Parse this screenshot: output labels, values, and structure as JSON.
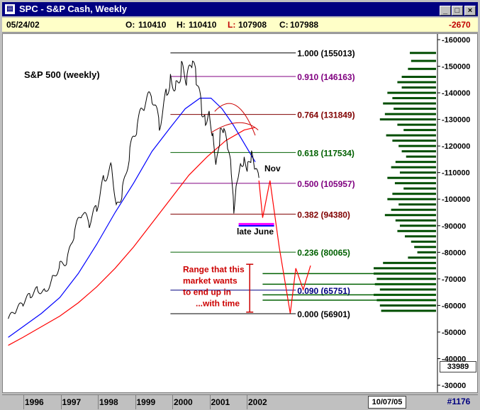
{
  "window": {
    "title": "SPC - S&P Cash, Weekly",
    "min": "_",
    "max": "□",
    "close": "×"
  },
  "infobar": {
    "date": "05/24/02",
    "o_label": "O:",
    "o_value": "110410",
    "h_label": "H:",
    "h_value": "110410",
    "l_label": "L:",
    "l_value": "107908",
    "c_label": "C:",
    "c_value": "107988",
    "change": "-2670"
  },
  "bottom": {
    "years": [
      "1996",
      "1997",
      "1998",
      "1999",
      "2000",
      "2001",
      "2002"
    ],
    "date_box": "10/07/05",
    "count": "#1176"
  },
  "scale_value_box": "33989",
  "chart_data": {
    "type": "line",
    "title": "S&P 500 (weekly)",
    "ylim": [
      30000,
      160000
    ],
    "y_ticks": [
      "160000",
      "150000",
      "140000",
      "130000",
      "120000",
      "110000",
      "100000",
      "90000",
      "80000",
      "70000",
      "60000",
      "50000",
      "40000",
      "30000"
    ],
    "x_years": [
      "1996",
      "1997",
      "1998",
      "1999",
      "2000",
      "2001",
      "2002"
    ],
    "series": [
      {
        "values": [
          [
            1995.6,
            55000
          ],
          [
            1995.8,
            58000
          ],
          [
            1996.0,
            61000
          ],
          [
            1996.2,
            64000
          ],
          [
            1996.4,
            66000
          ],
          [
            1996.6,
            65000
          ],
          [
            1996.8,
            70000
          ],
          [
            1997.0,
            75000
          ],
          [
            1997.2,
            77000
          ],
          [
            1997.4,
            88000
          ],
          [
            1997.6,
            95000
          ],
          [
            1997.8,
            91000
          ],
          [
            1998.0,
            97000
          ],
          [
            1998.2,
            108000
          ],
          [
            1998.4,
            112000
          ],
          [
            1998.55,
            97000
          ],
          [
            1998.7,
            103000
          ],
          [
            1998.9,
            118000
          ],
          [
            1999.1,
            128000
          ],
          [
            1999.3,
            136000
          ],
          [
            1999.5,
            139000
          ],
          [
            1999.7,
            128000
          ],
          [
            1999.9,
            140000
          ],
          [
            2000.0,
            146000
          ],
          [
            2000.15,
            142000
          ],
          [
            2000.3,
            149000
          ],
          [
            2000.45,
            145000
          ],
          [
            2000.6,
            152000
          ],
          [
            2000.7,
            145000
          ],
          [
            2000.85,
            134000
          ],
          [
            2000.95,
            130000
          ],
          [
            2001.05,
            134000
          ],
          [
            2001.15,
            124000
          ],
          [
            2001.25,
            113000
          ],
          [
            2001.35,
            124000
          ],
          [
            2001.45,
            125000
          ],
          [
            2001.55,
            119000
          ],
          [
            2001.65,
            111000
          ],
          [
            2001.72,
            96500
          ],
          [
            2001.8,
            108000
          ],
          [
            2001.9,
            114000
          ],
          [
            2002.0,
            115000
          ],
          [
            2002.1,
            112000
          ],
          [
            2002.2,
            116000
          ],
          [
            2002.3,
            110000
          ],
          [
            2002.4,
            107988
          ]
        ],
        "color": "#000000"
      },
      {
        "values": [
          [
            1995.6,
            48000
          ],
          [
            1996.0,
            52000
          ],
          [
            1996.5,
            57000
          ],
          [
            1997.0,
            63000
          ],
          [
            1997.5,
            72000
          ],
          [
            1998.0,
            83000
          ],
          [
            1998.5,
            95000
          ],
          [
            1999.0,
            106000
          ],
          [
            1999.5,
            118000
          ],
          [
            2000.0,
            127000
          ],
          [
            2000.4,
            134000
          ],
          [
            2000.8,
            138000
          ],
          [
            2001.1,
            138000
          ],
          [
            2001.4,
            134000
          ],
          [
            2001.7,
            128000
          ],
          [
            2002.0,
            121000
          ],
          [
            2002.3,
            114000
          ]
        ],
        "color": "#0000ff"
      },
      {
        "values": [
          [
            1995.6,
            45000
          ],
          [
            1996.0,
            48000
          ],
          [
            1996.5,
            52000
          ],
          [
            1997.0,
            56000
          ],
          [
            1997.5,
            61000
          ],
          [
            1998.0,
            67000
          ],
          [
            1998.5,
            74000
          ],
          [
            1999.0,
            82000
          ],
          [
            1999.5,
            91000
          ],
          [
            2000.0,
            100000
          ],
          [
            2000.5,
            109000
          ],
          [
            2001.0,
            116000
          ],
          [
            2001.5,
            122000
          ],
          [
            2002.0,
            126000
          ],
          [
            2002.3,
            127000
          ]
        ],
        "color": "#ff0000"
      }
    ],
    "projection": {
      "color": "#ff0000",
      "values": [
        [
          2002.4,
          107000
        ],
        [
          2002.5,
          93000
        ],
        [
          2002.7,
          107000
        ],
        [
          2002.95,
          82000
        ],
        [
          2003.25,
          57000
        ],
        [
          2003.4,
          74000
        ],
        [
          2003.6,
          66000
        ],
        [
          2003.8,
          75000
        ]
      ]
    },
    "fib_levels": [
      {
        "label": "1.000 (155013)",
        "value": 155013,
        "color": "#000000"
      },
      {
        "label": "0.910 (146163)",
        "value": 146163,
        "color": "#800080"
      },
      {
        "label": "0.764 (131849)",
        "value": 131849,
        "color": "#800000"
      },
      {
        "label": "0.618 (117534)",
        "value": 117534,
        "color": "#006000"
      },
      {
        "label": "0.500 (105957)",
        "value": 105957,
        "color": "#800080"
      },
      {
        "label": "0.382 (94380)",
        "value": 94380,
        "color": "#800000"
      },
      {
        "label": "0.236 (80065)",
        "value": 80065,
        "color": "#006000"
      },
      {
        "label": "0.090 (65751)",
        "value": 65751,
        "color": "#000080"
      },
      {
        "label": "0.000 (56901)",
        "value": 56901,
        "color": "#000000"
      }
    ],
    "annotations": {
      "nov": "Nov",
      "late_june": "late June",
      "range_note": [
        "Range that this",
        "market wants",
        "to end up in",
        "...with time"
      ]
    },
    "volume_profile": [
      {
        "y": 155000,
        "w": 0.42
      },
      {
        "y": 152000,
        "w": 0.4
      },
      {
        "y": 149000,
        "w": 0.45
      },
      {
        "y": 146000,
        "w": 0.55
      },
      {
        "y": 144000,
        "w": 0.62
      },
      {
        "y": 142000,
        "w": 0.55
      },
      {
        "y": 140000,
        "w": 0.78
      },
      {
        "y": 138000,
        "w": 0.7
      },
      {
        "y": 136000,
        "w": 0.85
      },
      {
        "y": 134000,
        "w": 0.68
      },
      {
        "y": 132000,
        "w": 0.82
      },
      {
        "y": 130000,
        "w": 0.9
      },
      {
        "y": 128000,
        "w": 0.62
      },
      {
        "y": 126000,
        "w": 0.52
      },
      {
        "y": 124000,
        "w": 0.8
      },
      {
        "y": 122000,
        "w": 0.7
      },
      {
        "y": 120000,
        "w": 0.6
      },
      {
        "y": 118000,
        "w": 0.55
      },
      {
        "y": 116000,
        "w": 0.48
      },
      {
        "y": 114000,
        "w": 0.65
      },
      {
        "y": 112000,
        "w": 0.72
      },
      {
        "y": 110000,
        "w": 0.58
      },
      {
        "y": 108000,
        "w": 0.78
      },
      {
        "y": 106000,
        "w": 0.66
      },
      {
        "y": 104000,
        "w": 0.52
      },
      {
        "y": 102000,
        "w": 0.7
      },
      {
        "y": 100000,
        "w": 0.78
      },
      {
        "y": 98000,
        "w": 0.6
      },
      {
        "y": 96000,
        "w": 0.72
      },
      {
        "y": 94000,
        "w": 0.82
      },
      {
        "y": 92000,
        "w": 0.65
      },
      {
        "y": 90000,
        "w": 0.58
      },
      {
        "y": 88000,
        "w": 0.62
      },
      {
        "y": 86000,
        "w": 0.5
      },
      {
        "y": 84000,
        "w": 0.4
      },
      {
        "y": 82000,
        "w": 0.35
      },
      {
        "y": 80000,
        "w": 0.3
      },
      {
        "y": 78000,
        "w": 0.45
      },
      {
        "y": 76000,
        "w": 0.85
      },
      {
        "y": 74000,
        "w": 1.0
      },
      {
        "y": 72000,
        "w": 1.0
      },
      {
        "y": 70000,
        "w": 0.95
      },
      {
        "y": 68000,
        "w": 0.98
      },
      {
        "y": 66000,
        "w": 0.9
      },
      {
        "y": 64000,
        "w": 1.0
      },
      {
        "y": 62000,
        "w": 0.95
      },
      {
        "y": 60000,
        "w": 0.9
      },
      {
        "y": 58000,
        "w": 0.88
      }
    ]
  }
}
